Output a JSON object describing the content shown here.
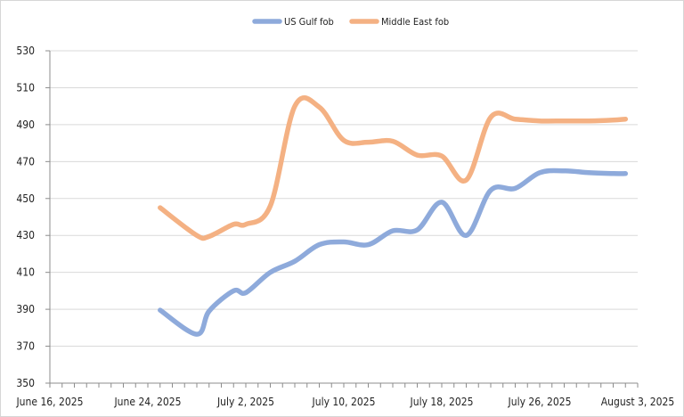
{
  "chart_data": {
    "type": "line",
    "title": "",
    "xlabel": "",
    "ylabel": "",
    "x_ticks": [
      "June 16, 2025",
      "June 24, 2025",
      "July 2, 2025",
      "July 10, 2025",
      "July 18, 2025",
      "July 26, 2025",
      "August 3, 2025"
    ],
    "y_ticks": [
      350,
      370,
      390,
      410,
      430,
      450,
      470,
      490,
      510,
      530
    ],
    "ylim": [
      350,
      530
    ],
    "xlim": [
      "2025-06-16",
      "2025-08-03"
    ],
    "grid": "horizontal",
    "legend_position": "top",
    "series": [
      {
        "name": "US Gulf fob",
        "color": "#8eaadb",
        "points": [
          [
            "2025-06-25",
            389.5
          ],
          [
            "2025-06-28",
            376.5
          ],
          [
            "2025-06-29",
            389
          ],
          [
            "2025-07-01",
            400
          ],
          [
            "2025-07-02",
            399
          ],
          [
            "2025-07-04",
            410
          ],
          [
            "2025-07-06",
            416
          ],
          [
            "2025-07-08",
            425
          ],
          [
            "2025-07-10",
            426.5
          ],
          [
            "2025-07-12",
            425
          ],
          [
            "2025-07-14",
            432.5
          ],
          [
            "2025-07-16",
            433
          ],
          [
            "2025-07-18",
            448
          ],
          [
            "2025-07-20",
            430
          ],
          [
            "2025-07-22",
            454.5
          ],
          [
            "2025-07-24",
            455.5
          ],
          [
            "2025-07-26",
            464
          ],
          [
            "2025-07-28",
            465
          ],
          [
            "2025-07-30",
            464
          ],
          [
            "2025-08-01",
            463.5
          ],
          [
            "2025-08-02",
            463.5
          ]
        ]
      },
      {
        "name": "Middle East fob",
        "color": "#f4b183",
        "points": [
          [
            "2025-06-25",
            445
          ],
          [
            "2025-06-28",
            430
          ],
          [
            "2025-06-29",
            429.5
          ],
          [
            "2025-07-01",
            436
          ],
          [
            "2025-07-02",
            436
          ],
          [
            "2025-07-04",
            446
          ],
          [
            "2025-07-06",
            500
          ],
          [
            "2025-07-08",
            499.5
          ],
          [
            "2025-07-10",
            481.5
          ],
          [
            "2025-07-12",
            480.5
          ],
          [
            "2025-07-14",
            481
          ],
          [
            "2025-07-16",
            473.5
          ],
          [
            "2025-07-18",
            473
          ],
          [
            "2025-07-20",
            460
          ],
          [
            "2025-07-22",
            494
          ],
          [
            "2025-07-24",
            493
          ],
          [
            "2025-07-26",
            492
          ],
          [
            "2025-07-28",
            492
          ],
          [
            "2025-07-30",
            492
          ],
          [
            "2025-08-01",
            492.5
          ],
          [
            "2025-08-02",
            493
          ]
        ]
      }
    ]
  }
}
